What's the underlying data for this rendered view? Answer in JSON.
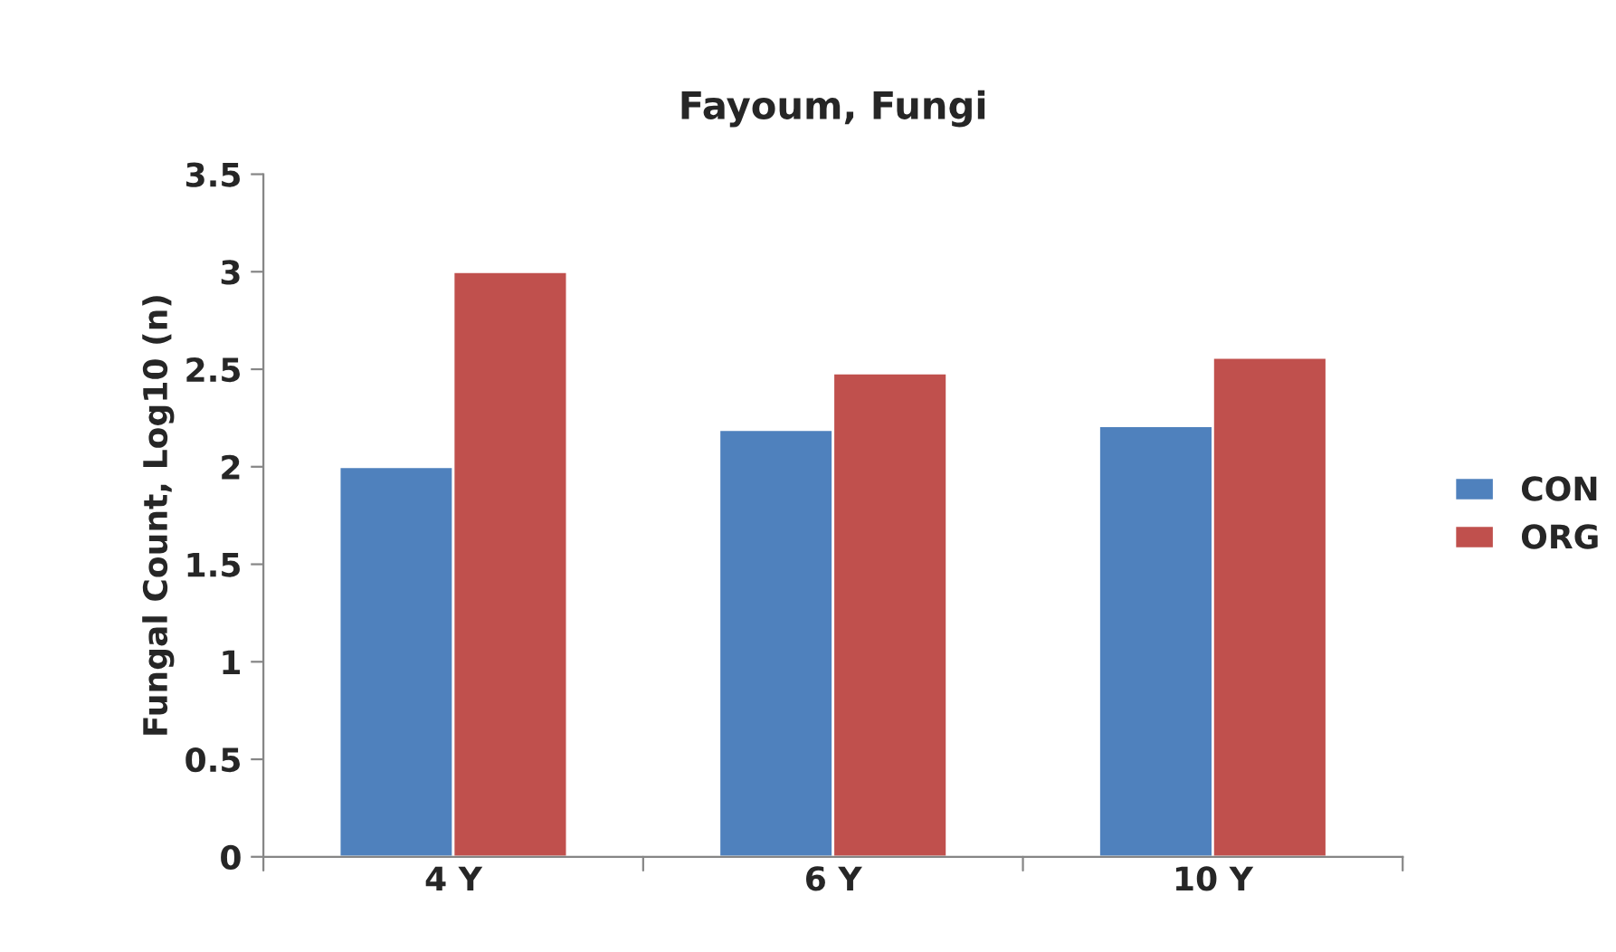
{
  "chart_data": {
    "type": "bar",
    "title": "Fayoum, Fungi",
    "ylabel": "Fungal Count, Log10 (n)",
    "categories": [
      "4 Y",
      "6 Y",
      "10 Y"
    ],
    "series": [
      {
        "name": "CON",
        "color": "#4f81bd",
        "values": [
          2.0,
          2.19,
          2.21
        ]
      },
      {
        "name": "ORG",
        "color": "#c0504d",
        "values": [
          3.0,
          2.48,
          2.56
        ]
      }
    ],
    "ylim": [
      0,
      3.5
    ],
    "yticks": [
      0,
      0.5,
      1,
      1.5,
      2,
      2.5,
      3,
      3.5
    ],
    "grid": false,
    "legend": "right"
  }
}
